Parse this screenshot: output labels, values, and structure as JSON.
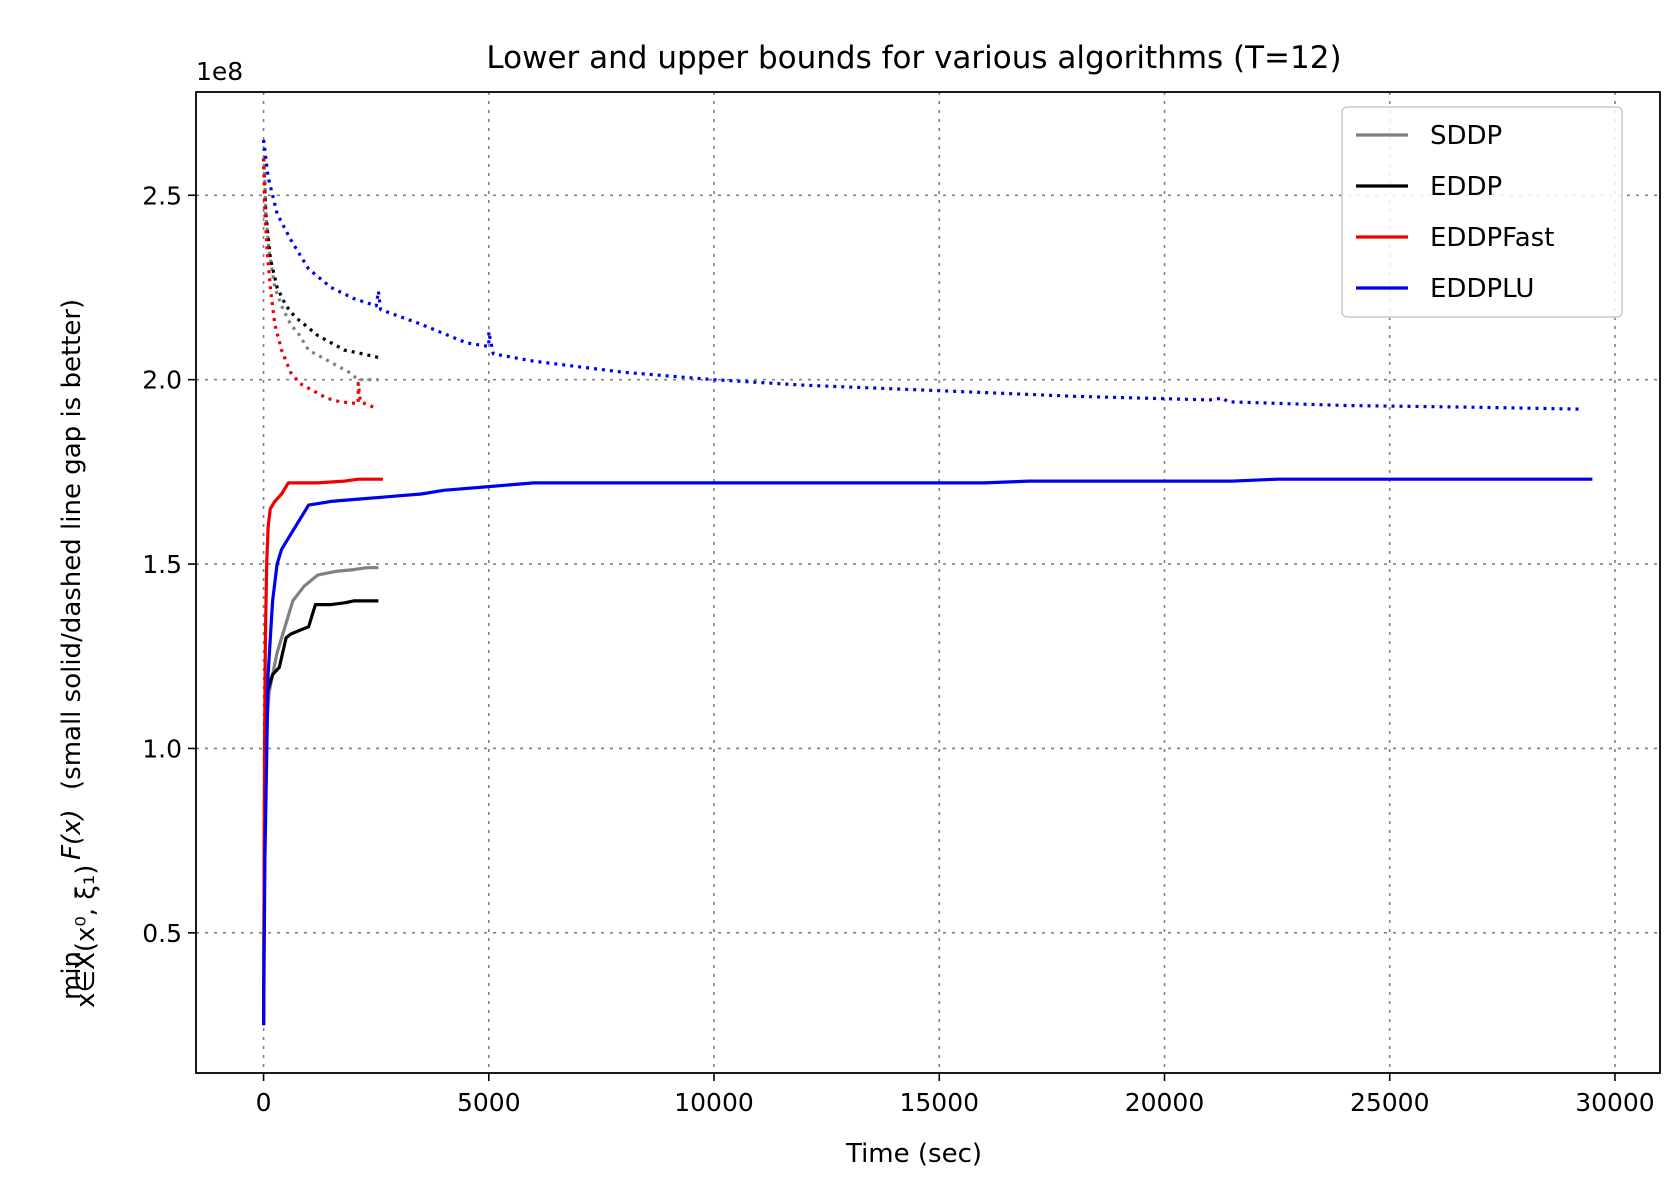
{
  "chart_data": {
    "type": "line",
    "title": "Lower and upper bounds for various algorithms (T=12)",
    "xlabel": "Time (sec)",
    "ylabel_math": "min",
    "ylabel_subscript": "x∈X(x⁰, ξ₁)",
    "ylabel_function": "F(x)",
    "ylabel_text": "(small solid/dashed line gap is better)",
    "y_offset_label": "1e8",
    "xlim": [
      -1500,
      31000
    ],
    "ylim": [
      0.12,
      2.78
    ],
    "x_ticks": [
      0,
      5000,
      10000,
      15000,
      20000,
      25000,
      30000
    ],
    "x_tick_labels": [
      "0",
      "5000",
      "10000",
      "15000",
      "20000",
      "25000",
      "30000"
    ],
    "y_ticks": [
      0.5,
      1.0,
      1.5,
      2.0,
      2.5
    ],
    "y_tick_labels": [
      "0.5",
      "1.0",
      "1.5",
      "2.0",
      "2.5"
    ],
    "grid": true,
    "legend_position": "top-right",
    "series": [
      {
        "name": "SDDP",
        "color": "#808080",
        "lower": [
          [
            0,
            0.25
          ],
          [
            20,
            0.8
          ],
          [
            60,
            1.05
          ],
          [
            120,
            1.15
          ],
          [
            200,
            1.2
          ],
          [
            300,
            1.26
          ],
          [
            400,
            1.3
          ],
          [
            500,
            1.34
          ],
          [
            650,
            1.4
          ],
          [
            900,
            1.44
          ],
          [
            1200,
            1.47
          ],
          [
            1600,
            1.48
          ],
          [
            2000,
            1.485
          ],
          [
            2300,
            1.49
          ],
          [
            2550,
            1.49
          ]
        ],
        "upper": [
          [
            0,
            2.65
          ],
          [
            50,
            2.45
          ],
          [
            120,
            2.35
          ],
          [
            250,
            2.25
          ],
          [
            400,
            2.2
          ],
          [
            600,
            2.15
          ],
          [
            800,
            2.12
          ],
          [
            1000,
            2.08
          ],
          [
            1300,
            2.06
          ],
          [
            1600,
            2.04
          ],
          [
            1900,
            2.02
          ],
          [
            2100,
            2.0
          ],
          [
            2550,
            2.0
          ]
        ]
      },
      {
        "name": "EDDP",
        "color": "#000000",
        "lower": [
          [
            0,
            0.25
          ],
          [
            20,
            0.8
          ],
          [
            60,
            1.1
          ],
          [
            100,
            1.16
          ],
          [
            200,
            1.2
          ],
          [
            350,
            1.22
          ],
          [
            500,
            1.3
          ],
          [
            600,
            1.31
          ],
          [
            800,
            1.32
          ],
          [
            1000,
            1.33
          ],
          [
            1150,
            1.39
          ],
          [
            1500,
            1.39
          ],
          [
            1800,
            1.395
          ],
          [
            2000,
            1.4
          ],
          [
            2550,
            1.4
          ]
        ],
        "upper": [
          [
            0,
            2.6
          ],
          [
            50,
            2.45
          ],
          [
            150,
            2.33
          ],
          [
            300,
            2.25
          ],
          [
            500,
            2.2
          ],
          [
            700,
            2.17
          ],
          [
            900,
            2.15
          ],
          [
            1200,
            2.12
          ],
          [
            1500,
            2.1
          ],
          [
            1800,
            2.08
          ],
          [
            2200,
            2.07
          ],
          [
            2550,
            2.06
          ]
        ]
      },
      {
        "name": "EDDPFast",
        "color": "#ee0000",
        "lower": [
          [
            0,
            0.25
          ],
          [
            20,
            1.0
          ],
          [
            40,
            1.3
          ],
          [
            70,
            1.5
          ],
          [
            100,
            1.6
          ],
          [
            150,
            1.65
          ],
          [
            250,
            1.67
          ],
          [
            400,
            1.69
          ],
          [
            550,
            1.72
          ],
          [
            800,
            1.72
          ],
          [
            1200,
            1.72
          ],
          [
            1800,
            1.725
          ],
          [
            2100,
            1.73
          ],
          [
            2650,
            1.73
          ]
        ],
        "upper": [
          [
            0,
            2.6
          ],
          [
            30,
            2.45
          ],
          [
            80,
            2.35
          ],
          [
            150,
            2.25
          ],
          [
            250,
            2.15
          ],
          [
            400,
            2.08
          ],
          [
            600,
            2.02
          ],
          [
            800,
            1.99
          ],
          [
            1100,
            1.97
          ],
          [
            1400,
            1.95
          ],
          [
            1700,
            1.94
          ],
          [
            2100,
            1.935
          ],
          [
            2100,
            1.99
          ],
          [
            2150,
            1.94
          ],
          [
            2450,
            1.925
          ]
        ]
      },
      {
        "name": "EDDPLU",
        "color": "#0000ee",
        "lower": [
          [
            0,
            0.25
          ],
          [
            30,
            0.7
          ],
          [
            100,
            1.2
          ],
          [
            200,
            1.4
          ],
          [
            300,
            1.5
          ],
          [
            400,
            1.54
          ],
          [
            600,
            1.58
          ],
          [
            800,
            1.62
          ],
          [
            1000,
            1.66
          ],
          [
            1500,
            1.67
          ],
          [
            2000,
            1.675
          ],
          [
            2500,
            1.68
          ],
          [
            3000,
            1.685
          ],
          [
            3500,
            1.69
          ],
          [
            4000,
            1.7
          ],
          [
            5000,
            1.71
          ],
          [
            6000,
            1.72
          ],
          [
            8000,
            1.72
          ],
          [
            12000,
            1.72
          ],
          [
            16000,
            1.72
          ],
          [
            17000,
            1.725
          ],
          [
            21500,
            1.725
          ],
          [
            22500,
            1.73
          ],
          [
            29500,
            1.73
          ]
        ],
        "upper": [
          [
            0,
            2.65
          ],
          [
            100,
            2.55
          ],
          [
            300,
            2.45
          ],
          [
            600,
            2.38
          ],
          [
            1000,
            2.3
          ],
          [
            1500,
            2.25
          ],
          [
            2000,
            2.22
          ],
          [
            2500,
            2.2
          ],
          [
            2550,
            2.24
          ],
          [
            2600,
            2.19
          ],
          [
            3500,
            2.15
          ],
          [
            4500,
            2.1
          ],
          [
            5000,
            2.09
          ],
          [
            5000,
            2.13
          ],
          [
            5100,
            2.07
          ],
          [
            6000,
            2.05
          ],
          [
            8000,
            2.02
          ],
          [
            10000,
            2.0
          ],
          [
            12000,
            1.985
          ],
          [
            15000,
            1.97
          ],
          [
            18000,
            1.955
          ],
          [
            21000,
            1.945
          ],
          [
            21300,
            1.95
          ],
          [
            21400,
            1.94
          ],
          [
            24000,
            1.93
          ],
          [
            27000,
            1.925
          ],
          [
            29300,
            1.92
          ]
        ]
      }
    ]
  }
}
